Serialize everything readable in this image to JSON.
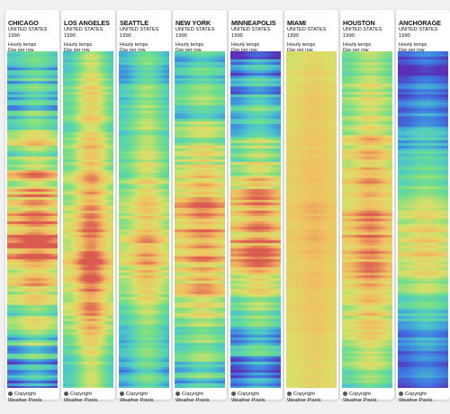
{
  "colors": {
    "background": "#f1f1f1",
    "card": "#ffffff",
    "scale": [
      "#5b2fb8",
      "#3f7ee6",
      "#4ec9cc",
      "#72e08a",
      "#d8e26a",
      "#f0c060",
      "#d95a4f"
    ]
  },
  "chart_data": {
    "type": "heatmap",
    "description_rows": "Day per row",
    "description_cols": "Hourly temps",
    "year": "1990",
    "panels": [
      {
        "city": "CHICAGO",
        "country": "UNITED STATES",
        "year": "1990",
        "subtitle1": "Hourly temps",
        "subtitle2": "Day per row",
        "season_profile": [
          0.3,
          0.3,
          0.3,
          0.35,
          0.35,
          0.4,
          0.45,
          0.5,
          0.55,
          0.6,
          0.65,
          0.75,
          0.8,
          0.8,
          0.85,
          0.9,
          0.9,
          0.85,
          0.85,
          0.8,
          0.75,
          0.7,
          0.6,
          0.5,
          0.45,
          0.4,
          0.35,
          0.3,
          0.3,
          0.25
        ],
        "daily_amp": 0.12,
        "noise": 0.28
      },
      {
        "city": "LOS ANGELES",
        "country": "UNITED STATES",
        "year": "1990",
        "subtitle1": "Hourly temps",
        "subtitle2": "Day per row",
        "season_profile": [
          0.5,
          0.52,
          0.55,
          0.58,
          0.6,
          0.62,
          0.6,
          0.62,
          0.65,
          0.66,
          0.68,
          0.7,
          0.72,
          0.74,
          0.78,
          0.8,
          0.82,
          0.84,
          0.86,
          0.84,
          0.82,
          0.78,
          0.74,
          0.72,
          0.68,
          0.62,
          0.58,
          0.55,
          0.52,
          0.5
        ],
        "daily_amp": 0.25,
        "noise": 0.12
      },
      {
        "city": "SEATTLE",
        "country": "UNITED STATES",
        "year": "1990",
        "subtitle1": "Hourly temps",
        "subtitle2": "Day per row",
        "season_profile": [
          0.38,
          0.4,
          0.36,
          0.4,
          0.42,
          0.45,
          0.48,
          0.5,
          0.52,
          0.56,
          0.58,
          0.62,
          0.64,
          0.68,
          0.7,
          0.72,
          0.74,
          0.76,
          0.75,
          0.72,
          0.68,
          0.62,
          0.56,
          0.5,
          0.46,
          0.42,
          0.38,
          0.36,
          0.34,
          0.32
        ],
        "daily_amp": 0.18,
        "noise": 0.14
      },
      {
        "city": "NEW YORK",
        "country": "UNITED STATES",
        "year": "1990",
        "subtitle1": "Hourly temps",
        "subtitle2": "Day per row",
        "season_profile": [
          0.38,
          0.38,
          0.4,
          0.42,
          0.42,
          0.46,
          0.5,
          0.54,
          0.58,
          0.62,
          0.66,
          0.72,
          0.76,
          0.8,
          0.84,
          0.86,
          0.88,
          0.86,
          0.84,
          0.8,
          0.76,
          0.7,
          0.64,
          0.56,
          0.5,
          0.46,
          0.42,
          0.4,
          0.38,
          0.36
        ],
        "daily_amp": 0.1,
        "noise": 0.2
      },
      {
        "city": "MINNEAPOLIS",
        "country": "UNITED STATES",
        "year": "1990",
        "subtitle1": "Hourly temps",
        "subtitle2": "Day per row",
        "season_profile": [
          0.2,
          0.18,
          0.22,
          0.28,
          0.3,
          0.36,
          0.42,
          0.48,
          0.54,
          0.6,
          0.66,
          0.72,
          0.78,
          0.82,
          0.84,
          0.86,
          0.86,
          0.84,
          0.8,
          0.74,
          0.66,
          0.58,
          0.5,
          0.42,
          0.36,
          0.3,
          0.26,
          0.22,
          0.18,
          0.16
        ],
        "daily_amp": 0.12,
        "noise": 0.25
      },
      {
        "city": "MIAMI",
        "country": "UNITED STATES",
        "year": "1990",
        "subtitle1": "Hourly temps",
        "subtitle2": "Day per row",
        "season_profile": [
          0.7,
          0.7,
          0.72,
          0.72,
          0.74,
          0.74,
          0.75,
          0.76,
          0.77,
          0.78,
          0.79,
          0.8,
          0.8,
          0.8,
          0.81,
          0.81,
          0.8,
          0.8,
          0.8,
          0.79,
          0.78,
          0.77,
          0.76,
          0.75,
          0.74,
          0.73,
          0.72,
          0.72,
          0.71,
          0.7
        ],
        "daily_amp": 0.06,
        "noise": 0.04
      },
      {
        "city": "HOUSTON",
        "country": "UNITED STATES",
        "year": "1990",
        "subtitle1": "Hourly temps",
        "subtitle2": "Day per row",
        "season_profile": [
          0.55,
          0.55,
          0.58,
          0.6,
          0.62,
          0.64,
          0.66,
          0.7,
          0.72,
          0.74,
          0.76,
          0.78,
          0.8,
          0.84,
          0.86,
          0.88,
          0.88,
          0.86,
          0.84,
          0.82,
          0.8,
          0.76,
          0.72,
          0.68,
          0.64,
          0.6,
          0.58,
          0.56,
          0.5,
          0.42
        ],
        "daily_amp": 0.12,
        "noise": 0.16
      },
      {
        "city": "ANCHORAGE",
        "country": "UNITED STATES",
        "year": "1990",
        "subtitle1": "Hourly temps",
        "subtitle2": "Day per row",
        "season_profile": [
          0.08,
          0.06,
          0.08,
          0.12,
          0.14,
          0.18,
          0.22,
          0.26,
          0.3,
          0.36,
          0.44,
          0.5,
          0.56,
          0.62,
          0.66,
          0.68,
          0.7,
          0.7,
          0.68,
          0.64,
          0.58,
          0.5,
          0.42,
          0.34,
          0.28,
          0.22,
          0.18,
          0.14,
          0.1,
          0.08
        ],
        "daily_amp": 0.08,
        "noise": 0.14
      }
    ]
  },
  "footer": {
    "icon": "copyright-icon",
    "line1": "Copyright",
    "line2": "Weather Pixels"
  }
}
